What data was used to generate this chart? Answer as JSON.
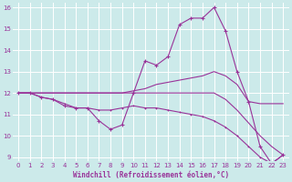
{
  "background_color": "#cceaea",
  "grid_color": "#ffffff",
  "line_color": "#993399",
  "xlabel": "Windchill (Refroidissement éolien,°C)",
  "xlim": [
    -0.5,
    23.5
  ],
  "ylim": [
    8.8,
    16.2
  ],
  "xticks": [
    0,
    1,
    2,
    3,
    4,
    5,
    6,
    7,
    8,
    9,
    10,
    11,
    12,
    13,
    14,
    15,
    16,
    17,
    18,
    19,
    20,
    21,
    22,
    23
  ],
  "yticks": [
    9,
    10,
    11,
    12,
    13,
    14,
    15,
    16
  ],
  "s1_x": [
    0,
    1,
    2,
    3,
    4,
    5,
    6,
    7,
    8,
    9,
    10,
    11,
    12,
    13,
    14,
    15,
    16,
    17,
    18,
    19,
    20,
    21,
    22,
    23
  ],
  "s1_y": [
    12.0,
    12.0,
    11.8,
    11.7,
    11.4,
    11.3,
    11.3,
    10.7,
    10.3,
    10.5,
    12.0,
    13.5,
    13.3,
    13.7,
    15.2,
    15.5,
    15.5,
    16.0,
    14.9,
    13.0,
    11.6,
    9.5,
    8.7,
    9.1
  ],
  "s2_x": [
    0,
    1,
    2,
    3,
    4,
    5,
    6,
    7,
    8,
    9,
    10,
    11,
    12,
    13,
    14,
    15,
    16,
    17,
    18,
    19,
    20,
    21,
    22,
    23
  ],
  "s2_y": [
    12.0,
    12.0,
    12.0,
    12.0,
    12.0,
    12.0,
    12.0,
    12.0,
    12.0,
    12.0,
    12.1,
    12.2,
    12.4,
    12.5,
    12.6,
    12.7,
    12.8,
    13.0,
    12.8,
    12.4,
    11.6,
    11.5,
    11.5,
    11.5
  ],
  "s3_x": [
    0,
    1,
    2,
    3,
    4,
    5,
    6,
    7,
    8,
    9,
    10,
    11,
    12,
    13,
    14,
    15,
    16,
    17,
    18,
    19,
    20,
    21,
    22,
    23
  ],
  "s3_y": [
    12.0,
    12.0,
    11.8,
    11.7,
    11.5,
    11.3,
    11.3,
    11.2,
    11.2,
    11.3,
    11.4,
    11.3,
    11.3,
    11.2,
    11.1,
    11.0,
    10.9,
    10.7,
    10.4,
    10.0,
    9.5,
    9.0,
    8.7,
    9.1
  ],
  "s4_x": [
    0,
    1,
    2,
    3,
    4,
    5,
    6,
    7,
    8,
    9,
    10,
    11,
    12,
    13,
    14,
    15,
    16,
    17,
    18,
    19,
    20,
    21,
    22,
    23
  ],
  "s4_y": [
    12.0,
    12.0,
    12.0,
    12.0,
    12.0,
    12.0,
    12.0,
    12.0,
    12.0,
    12.0,
    12.0,
    12.0,
    12.0,
    12.0,
    12.0,
    12.0,
    12.0,
    12.0,
    11.7,
    11.2,
    10.6,
    10.0,
    9.5,
    9.1
  ]
}
